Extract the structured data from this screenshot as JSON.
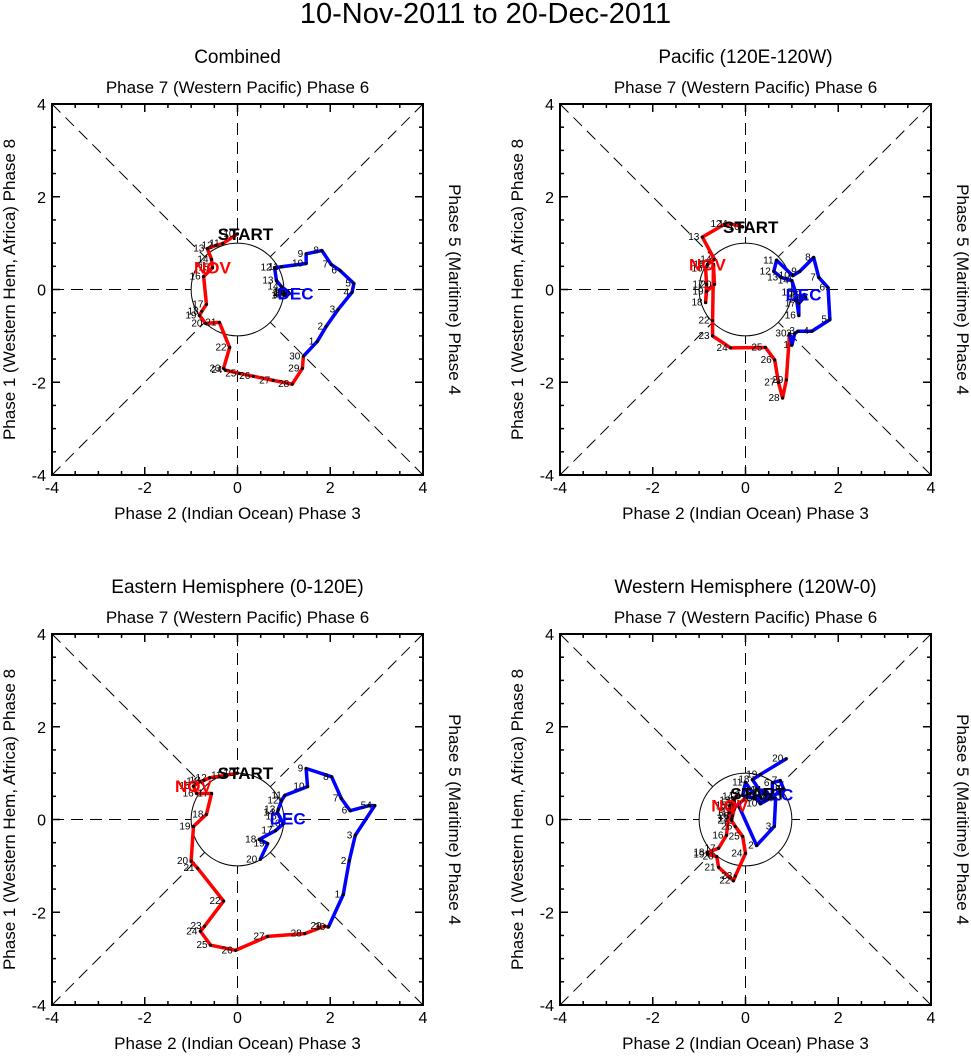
{
  "title": "10-Nov-2011 to 20-Dec-2011",
  "colors": {
    "nov": "#ff0000",
    "dec": "#0000ff",
    "axis": "#000000"
  },
  "chart_data": [
    {
      "type": "line",
      "title": "Combined",
      "xlabel": "Phase 2 (Indian Ocean) Phase 3",
      "top_label": "Phase 7 (Western Pacific) Phase 6",
      "ylabel_left": "Phase 1 (Western Hem, Africa) Phase 8",
      "ylabel_right": "Phase 5 (Maritime) Phase 4",
      "xlim": [
        -4,
        4
      ],
      "ylim": [
        -4,
        4
      ],
      "xticks": [
        "-4",
        "-2",
        "0",
        "2",
        "4"
      ],
      "yticks": [
        "-4",
        "-2",
        "0",
        "2",
        "4"
      ],
      "start_label": "START",
      "series": [
        {
          "name": "NOV",
          "color": "#ff0000",
          "days": [
            10,
            11,
            12,
            13,
            14,
            15,
            16,
            17,
            18,
            19,
            20,
            21,
            22,
            23,
            24,
            25,
            26,
            27,
            28,
            29,
            30
          ],
          "x": [
            0.0,
            -0.32,
            -0.47,
            -0.65,
            -0.56,
            -0.54,
            -0.73,
            -0.67,
            -0.77,
            -0.82,
            -0.69,
            -0.39,
            -0.17,
            -0.3,
            -0.26,
            0.04,
            0.34,
            0.77,
            1.18,
            1.4,
            1.42
          ],
          "y": [
            1.2,
            0.99,
            0.95,
            0.88,
            0.65,
            0.47,
            0.28,
            -0.32,
            -0.47,
            -0.56,
            -0.73,
            -0.71,
            -1.25,
            -1.7,
            -1.74,
            -1.81,
            -1.87,
            -1.96,
            -2.04,
            -1.7,
            -1.44
          ]
        },
        {
          "name": "DEC",
          "color": "#0000ff",
          "days": [
            1,
            2,
            3,
            4,
            5,
            6,
            7,
            8,
            9,
            10,
            11,
            12,
            13,
            14,
            15,
            16,
            17,
            18,
            19,
            20
          ],
          "x": [
            1.72,
            1.91,
            2.17,
            2.47,
            2.51,
            2.21,
            2.02,
            1.82,
            1.48,
            1.48,
            0.95,
            0.8,
            0.84,
            0.95,
            1.08,
            1.12,
            1.03,
            1.08,
            1.05,
            1.1
          ],
          "y": [
            -1.12,
            -0.8,
            -0.43,
            -0.06,
            0.13,
            0.41,
            0.54,
            0.84,
            0.77,
            0.56,
            0.49,
            0.47,
            0.19,
            0.06,
            -0.04,
            -0.09,
            -0.13,
            -0.11,
            -0.08,
            -0.06
          ]
        }
      ]
    },
    {
      "type": "line",
      "title": "Pacific (120E-120W)",
      "xlabel": "Phase 2 (Indian Ocean) Phase 3",
      "top_label": "Phase 7 (Western Pacific) Phase 6",
      "ylabel_left": "Phase 1 (Western Hem, Africa) Phase 8",
      "ylabel_right": "Phase 5 (Maritime) Phase 4",
      "xlim": [
        -4,
        4
      ],
      "ylim": [
        -4,
        4
      ],
      "xticks": [
        "-4",
        "-2",
        "0",
        "2",
        "4"
      ],
      "yticks": [
        "-4",
        "-2",
        "0",
        "2",
        "4"
      ],
      "start_label": "START",
      "series": [
        {
          "name": "NOV",
          "color": "#ff0000",
          "days": [
            10,
            11,
            12,
            13,
            14,
            15,
            16,
            17,
            18,
            19,
            20,
            21,
            22,
            23,
            24,
            25,
            26,
            27,
            28,
            29,
            30
          ],
          "x": [
            -0.06,
            -0.3,
            -0.45,
            -0.93,
            -0.67,
            -0.82,
            -0.86,
            -0.84,
            -0.86,
            -0.84,
            -0.67,
            -0.69,
            -0.71,
            -0.71,
            -0.32,
            0.43,
            0.63,
            0.71,
            0.8,
            0.88,
            0.95
          ],
          "y": [
            1.35,
            1.41,
            1.41,
            1.13,
            0.65,
            0.54,
            0.45,
            0.11,
            -0.28,
            -0.04,
            0.11,
            0.54,
            -0.67,
            -1.0,
            -1.26,
            -1.25,
            -1.52,
            -2.0,
            -2.34,
            -1.95,
            -0.95
          ]
        },
        {
          "name": "DEC",
          "color": "#0000ff",
          "days": [
            1,
            2,
            3,
            4,
            5,
            6,
            7,
            8,
            9,
            10,
            11,
            12,
            13,
            14,
            15,
            16,
            17,
            18,
            19,
            20
          ],
          "x": [
            1.0,
            1.06,
            1.13,
            1.43,
            1.82,
            1.78,
            1.58,
            1.47,
            1.17,
            1.02,
            0.67,
            0.61,
            0.77,
            1.0,
            1.08,
            1.15,
            1.15,
            1.22,
            1.27,
            1.3
          ],
          "y": [
            -1.2,
            -0.95,
            -0.9,
            -0.9,
            -0.65,
            0.04,
            0.26,
            0.69,
            0.39,
            0.3,
            0.63,
            0.39,
            0.26,
            0.19,
            -0.06,
            -0.56,
            -0.3,
            -0.22,
            -0.11,
            -0.18
          ]
        }
      ]
    },
    {
      "type": "line",
      "title": "Eastern Hemisphere (0-120E)",
      "xlabel": "Phase 2 (Indian Ocean) Phase 3",
      "top_label": "Phase 7 (Western Pacific) Phase 6",
      "ylabel_left": "Phase 1 (Western Hem, Africa) Phase 8",
      "ylabel_right": "Phase 5 (Maritime) Phase 4",
      "xlim": [
        -4,
        4
      ],
      "ylim": [
        -4,
        4
      ],
      "xticks": [
        "-4",
        "-2",
        "0",
        "2",
        "4"
      ],
      "yticks": [
        "-4",
        "-2",
        "0",
        "2",
        "4"
      ],
      "start_label": "START",
      "series": [
        {
          "name": "NOV",
          "color": "#ff0000",
          "days": [
            10,
            11,
            12,
            13,
            14,
            15,
            16,
            17,
            18,
            19,
            20,
            21,
            22,
            23,
            24,
            25,
            26,
            27,
            28,
            29,
            30
          ],
          "x": [
            0.0,
            -0.28,
            -0.6,
            -0.73,
            -0.8,
            -0.95,
            -0.88,
            -0.56,
            -0.67,
            -0.95,
            -1.0,
            -0.86,
            -0.3,
            -0.71,
            -0.8,
            -0.58,
            -0.04,
            0.65,
            1.45,
            1.88,
            1.96
          ],
          "y": [
            1.0,
            0.95,
            0.9,
            0.84,
            0.82,
            0.72,
            0.56,
            0.56,
            0.11,
            -0.15,
            -0.9,
            -1.05,
            -1.76,
            -2.3,
            -2.41,
            -2.71,
            -2.82,
            -2.52,
            -2.46,
            -2.3,
            -2.32
          ]
        },
        {
          "name": "DEC",
          "color": "#0000ff",
          "days": [
            1,
            2,
            3,
            4,
            5,
            6,
            7,
            8,
            9,
            10,
            11,
            12,
            13,
            14,
            15,
            16,
            17,
            18,
            19,
            20
          ],
          "x": [
            2.28,
            2.41,
            2.54,
            2.96,
            2.84,
            2.43,
            2.24,
            2.03,
            1.48,
            1.51,
            1.02,
            0.95,
            0.88,
            0.86,
            0.91,
            0.99,
            0.82,
            0.47,
            0.65,
            0.49
          ],
          "y": [
            -1.62,
            -0.89,
            -0.34,
            0.3,
            0.3,
            0.19,
            0.45,
            0.92,
            1.1,
            0.71,
            0.52,
            0.41,
            0.22,
            0.15,
            0.06,
            -0.09,
            -0.24,
            -0.43,
            -0.52,
            -0.86
          ]
        }
      ]
    },
    {
      "type": "line",
      "title": "Western Hemisphere (120W-0)",
      "xlabel": "Phase 2 (Indian Ocean) Phase 3",
      "top_label": "Phase 7 (Western Pacific) Phase 6",
      "ylabel_left": "Phase 1 (Western Hem, Africa) Phase 8",
      "ylabel_right": "Phase 5 (Maritime) Phase 4",
      "xlim": [
        -4,
        4
      ],
      "ylim": [
        -4,
        4
      ],
      "xticks": [
        "-4",
        "-2",
        "0",
        "2",
        "4"
      ],
      "yticks": [
        "-4",
        "-2",
        "0",
        "2",
        "4"
      ],
      "start_label": "START",
      "series": [
        {
          "name": "NOV",
          "color": "#ff0000",
          "days": [
            10,
            11,
            12,
            13,
            14,
            15,
            16,
            17,
            18,
            19,
            20,
            21,
            22,
            23,
            24,
            25,
            26,
            27,
            28,
            29,
            30
          ],
          "x": [
            0.1,
            -0.34,
            -0.3,
            -0.26,
            -0.2,
            -0.34,
            -0.41,
            -0.58,
            -0.82,
            -0.82,
            -0.62,
            -0.58,
            -0.26,
            -0.22,
            0.0,
            -0.06,
            -0.22,
            -0.3,
            -0.28,
            -0.24,
            -0.13
          ],
          "y": [
            0.56,
            0.15,
            0.02,
            0.41,
            0.5,
            0.3,
            -0.34,
            -0.62,
            -0.71,
            -0.75,
            -0.8,
            -1.03,
            -1.32,
            -1.22,
            -0.73,
            -0.37,
            -0.15,
            -0.02,
            0.08,
            0.24,
            0.37
          ]
        },
        {
          "name": "DEC",
          "color": "#0000ff",
          "days": [
            1,
            2,
            3,
            4,
            5,
            6,
            7,
            8,
            9,
            10,
            11,
            12,
            13,
            14,
            15,
            16,
            17,
            18,
            19,
            20
          ],
          "x": [
            -0.13,
            0.24,
            0.62,
            0.65,
            0.58,
            0.58,
            0.75,
            0.82,
            0.52,
            0.32,
            0.0,
            -0.06,
            0.21,
            0.41,
            0.47,
            0.55,
            0.31,
            0.15,
            0.32,
            0.88
          ],
          "y": [
            0.26,
            -0.56,
            -0.15,
            0.45,
            0.56,
            0.79,
            0.84,
            0.66,
            0.45,
            0.34,
            0.8,
            0.52,
            0.45,
            0.64,
            0.58,
            0.45,
            0.62,
            0.86,
            0.97,
            1.31
          ]
        }
      ]
    }
  ]
}
